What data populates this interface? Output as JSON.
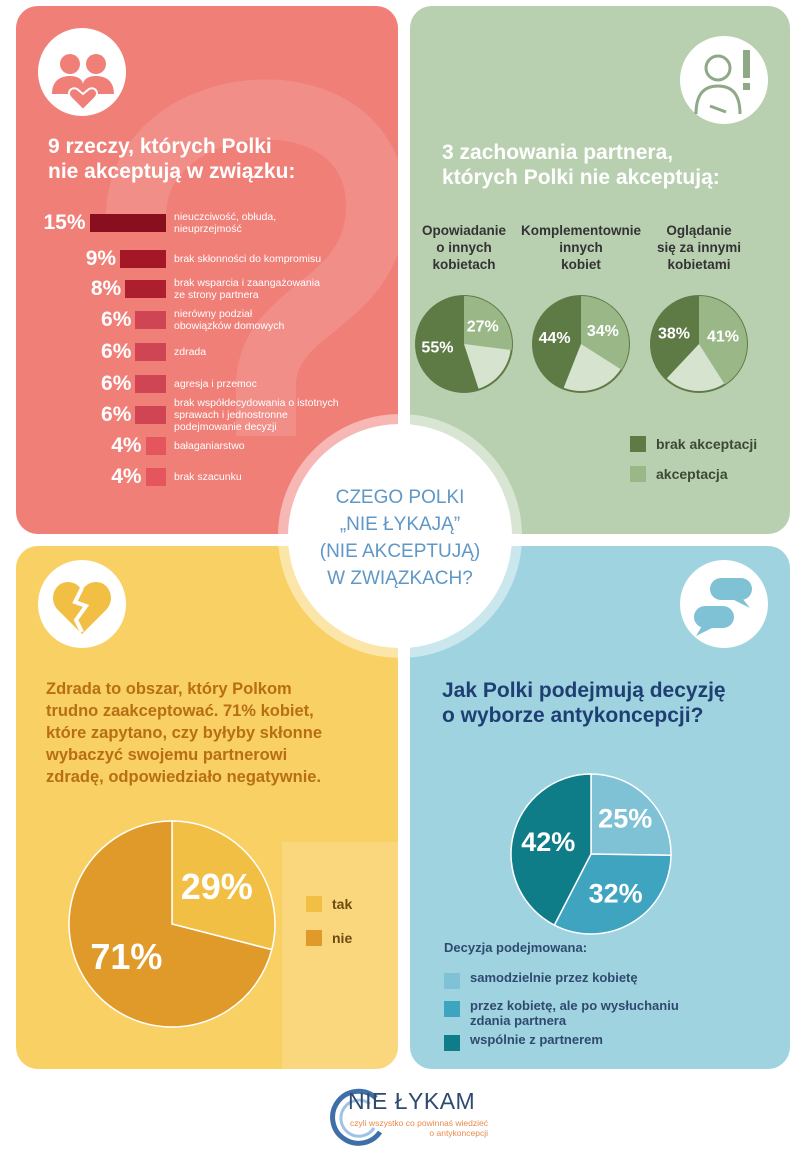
{
  "center": {
    "lines": [
      "CZEGO POLKI",
      "„NIE ŁYKAJĄ”",
      "(NIE AKCEPTUJĄ)",
      "W ZWIĄZKACH?"
    ]
  },
  "colors": {
    "red_panel": "#f07f78",
    "green_panel": "#b9d0b0",
    "yellow_panel": "#f9d063",
    "blue_panel": "#9fd3e0",
    "brak_akceptacji": "#5e7b46",
    "akceptacja": "#9ab887",
    "tak": "#f2bf45",
    "nie": "#e09a2a",
    "samodzielnie": "#7fc2d6",
    "po_wysluchaniu": "#3fa4c0",
    "wspolnie": "#0f7d88"
  },
  "icons": {
    "red": "couple-heart-icon",
    "green": "person-exclamation-icon",
    "yellow": "broken-heart-icon",
    "blue": "speech-bubbles-icon"
  },
  "panel1": {
    "title_line1": "9 rzeczy, których Polki",
    "title_line2": "nie akceptują w związku:",
    "chart_data": {
      "type": "bar",
      "categories": [
        "nieuczciwość, obłuda, nieuprzejmość",
        "brak skłonności do kompromisu",
        "brak wsparcia i zaangażowania ze strony partnera",
        "nierówny podział obowiązków domowych",
        "zdrada",
        "agresja i przemoc",
        "brak współdecydowania o istotnych sprawach i jednostronne podejmowanie decyzji",
        "bałaganiarstwo",
        "brak szacunku"
      ],
      "label_lines": [
        [
          "nieuczciwość, obłuda,",
          "nieuprzejmość"
        ],
        [
          "brak skłonności do kompromisu"
        ],
        [
          "brak wsparcia i zaangażowania",
          "ze strony partnera"
        ],
        [
          "nierówny podział",
          "obowiązków domowych"
        ],
        [
          "zdrada"
        ],
        [
          "agresja i przemoc"
        ],
        [
          "brak współdecydowania o istotnych",
          "sprawach i jednostronne",
          "podejmowanie decyzji"
        ],
        [
          "bałaganiarstwo"
        ],
        [
          "brak szacunku"
        ]
      ],
      "values": [
        15,
        9,
        8,
        6,
        6,
        6,
        6,
        4,
        4
      ],
      "value_labels": [
        "15%",
        "9%",
        "8%",
        "6%",
        "6%",
        "6%",
        "6%",
        "4%",
        "4%"
      ],
      "bar_colors": [
        "#8a0f1e",
        "#a41726",
        "#ad1e2e",
        "#cf4553",
        "#cf4553",
        "#cf4553",
        "#cf4553",
        "#e4555e",
        "#e4555e"
      ]
    }
  },
  "panel2": {
    "title_line1": "3 zachowania partnera,",
    "title_line2": "których Polki nie akceptują:",
    "chart_data": [
      {
        "type": "pie",
        "caption": [
          "Opowiadanie",
          "o innych",
          "kobietach"
        ],
        "slices": [
          {
            "name": "brak akceptacji",
            "value": 55,
            "label": "55%"
          },
          {
            "name": "akceptacja",
            "value": 27,
            "label": "27%"
          }
        ]
      },
      {
        "type": "pie",
        "caption": [
          "Komplementownie",
          "innych",
          "kobiet"
        ],
        "slices": [
          {
            "name": "brak akceptacji",
            "value": 44,
            "label": "44%"
          },
          {
            "name": "akceptacja",
            "value": 34,
            "label": "34%"
          }
        ]
      },
      {
        "type": "pie",
        "caption": [
          "Oglądanie",
          "się za innymi",
          "kobietami"
        ],
        "slices": [
          {
            "name": "brak akceptacji",
            "value": 38,
            "label": "38%"
          },
          {
            "name": "akceptacja",
            "value": 41,
            "label": "41%"
          }
        ]
      }
    ],
    "legend": [
      "brak akceptacji",
      "akceptacja"
    ]
  },
  "panel3": {
    "text_lines": [
      "Zdrada to obszar, który Polkom",
      "trudno zaakceptować. 71% kobiet,",
      "które zapytano, czy byłyby skłonne",
      "wybaczyć swojemu partnerowi",
      "zdradę, odpowiedziało negatywnie."
    ],
    "chart_data": {
      "type": "pie",
      "slices": [
        {
          "name": "tak",
          "value": 29,
          "label": "29%"
        },
        {
          "name": "nie",
          "value": 71,
          "label": "71%"
        }
      ]
    },
    "legend": [
      "tak",
      "nie"
    ]
  },
  "panel4": {
    "title_line1": "Jak Polki podejmują decyzję",
    "title_line2": "o wyborze antykoncepcji?",
    "chart_data": {
      "type": "pie",
      "slices": [
        {
          "name": "samodzielnie przez kobietę",
          "value": 25,
          "label": "25%"
        },
        {
          "name": "przez kobietę, ale po wysłuchaniu zdania partnera",
          "value": 32,
          "label": "32%"
        },
        {
          "name": "wspólnie z partnerem",
          "value": 42,
          "label": "42%"
        }
      ]
    },
    "legend_title": "Decyzja podejmowana:",
    "legend": [
      [
        "samodzielnie przez kobietę"
      ],
      [
        "przez kobietę, ale po wysłuchaniu",
        "zdania partnera"
      ],
      [
        "wspólnie z partnerem"
      ]
    ]
  },
  "logo": {
    "name": "NIE ŁYKAM",
    "tagline_line1": "czyli wszystko co powinnaś wiedzieć",
    "tagline_line2": "o antykoncepcji"
  }
}
